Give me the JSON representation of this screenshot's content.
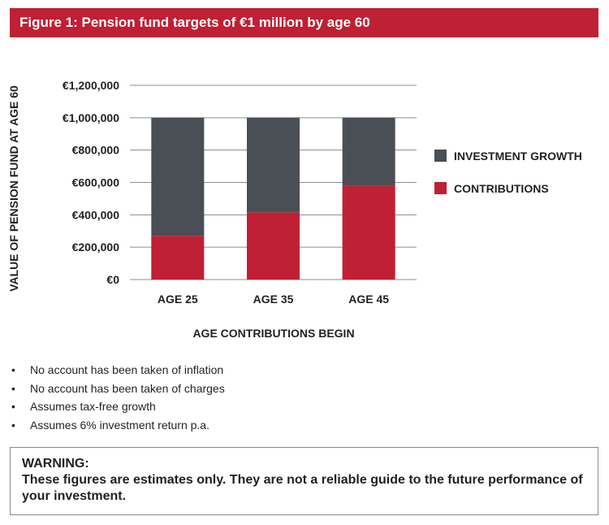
{
  "title": "Figure 1: Pension fund targets of €1 million by age 60",
  "chart_data": {
    "type": "bar",
    "stacked": true,
    "categories": [
      "AGE 25",
      "AGE 35",
      "AGE 45"
    ],
    "series": [
      {
        "name": "CONTRIBUTIONS",
        "color": "#bf2033",
        "values": [
          270000,
          415000,
          578000
        ]
      },
      {
        "name": "INVESTMENT GROWTH",
        "color": "#4a4f55",
        "values": [
          730000,
          585000,
          422000
        ]
      }
    ],
    "xlabel": "AGE CONTRIBUTIONS BEGIN",
    "ylabel": "VALUE OF PENSION FUND AT AGE 60",
    "ylim": [
      0,
      1200000
    ],
    "yticks": [
      0,
      200000,
      400000,
      600000,
      800000,
      1000000,
      1200000
    ],
    "ytick_labels": [
      "€0",
      "€200,000",
      "€400,000",
      "€600,000",
      "€800,000",
      "€1,000,000",
      "€1,200,000"
    ],
    "legend": [
      {
        "label": "INVESTMENT GROWTH",
        "color": "#4a4f55"
      },
      {
        "label": "CONTRIBUTIONS",
        "color": "#bf2033"
      }
    ],
    "legend_position": "right",
    "grid": true
  },
  "notes": [
    "No account has been taken of inflation",
    "No account has been taken of charges",
    "Assumes tax-free growth",
    "Assumes 6% investment return p.a."
  ],
  "warning": {
    "heading": "WARNING:",
    "text": "These figures are estimates only. They are not a reliable guide to the future performance of your investment."
  }
}
